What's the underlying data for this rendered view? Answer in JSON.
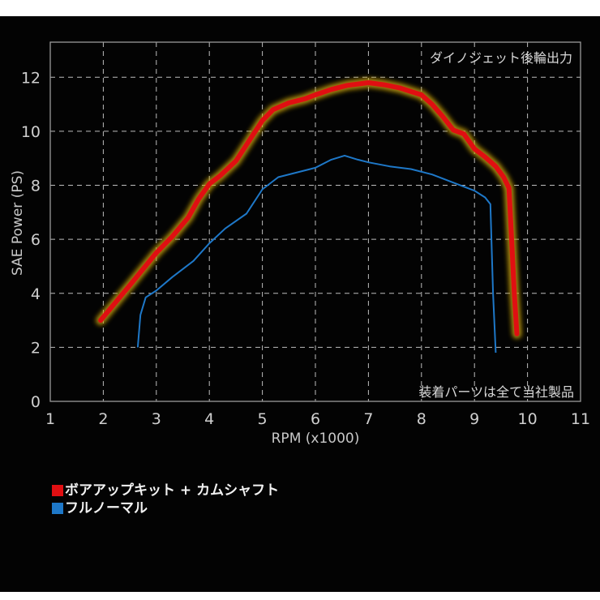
{
  "chart_data": {
    "type": "line",
    "title": "ダイノジェット後輪出力",
    "annotation": "装着パーツは全て当社製品",
    "xlabel": "RPM  (x1000)",
    "ylabel": "SAE Power  (PS)",
    "xlim": [
      1,
      11
    ],
    "ylim": [
      0,
      13.3
    ],
    "xticks": [
      "1",
      "2",
      "3",
      "4",
      "5",
      "6",
      "7",
      "8",
      "9",
      "10",
      "11"
    ],
    "yticks": [
      "0",
      "2",
      "4",
      "6",
      "8",
      "10",
      "12"
    ],
    "grid": true,
    "legend_position": "bottom-left",
    "series": [
      {
        "name": "ボアアップキット + カムシャフト",
        "color": "#e00f12",
        "x": [
          1.95,
          2.5,
          3.0,
          3.3,
          3.6,
          3.8,
          4.0,
          4.2,
          4.5,
          4.8,
          5.0,
          5.2,
          5.5,
          5.8,
          6.0,
          6.3,
          6.6,
          7.0,
          7.3,
          7.6,
          8.0,
          8.2,
          8.4,
          8.6,
          8.8,
          9.0,
          9.2,
          9.4,
          9.55,
          9.65,
          9.7,
          9.75,
          9.8
        ],
        "y": [
          3.0,
          4.3,
          5.5,
          6.1,
          6.8,
          7.5,
          8.05,
          8.35,
          8.9,
          9.8,
          10.4,
          10.8,
          11.05,
          11.2,
          11.35,
          11.55,
          11.7,
          11.8,
          11.72,
          11.6,
          11.35,
          11.0,
          10.55,
          10.05,
          9.9,
          9.35,
          9.05,
          8.7,
          8.3,
          7.9,
          6.0,
          4.0,
          2.5
        ]
      },
      {
        "name": "フルノーマル",
        "color": "#1e78c8",
        "x": [
          2.65,
          2.7,
          2.8,
          3.0,
          3.3,
          3.7,
          4.0,
          4.3,
          4.7,
          5.0,
          5.3,
          5.7,
          6.0,
          6.3,
          6.55,
          6.8,
          7.0,
          7.4,
          7.8,
          8.2,
          8.6,
          9.0,
          9.2,
          9.3,
          9.32,
          9.35,
          9.4
        ],
        "y": [
          2.0,
          3.2,
          3.85,
          4.1,
          4.6,
          5.2,
          5.85,
          6.4,
          6.95,
          7.85,
          8.3,
          8.5,
          8.65,
          8.95,
          9.1,
          8.95,
          8.85,
          8.7,
          8.6,
          8.4,
          8.1,
          7.8,
          7.55,
          7.3,
          6.0,
          4.0,
          1.8
        ]
      }
    ]
  },
  "chart": {
    "title": "ダイノジェット後輪出力",
    "annotation": "装着パーツは全て当社製品",
    "xlabel": "RPM  (x1000)",
    "ylabel": "SAE Power  (PS)"
  },
  "legend": {
    "items": [
      {
        "label": "ボアアップキット + カムシャフト",
        "color": "#e00f12"
      },
      {
        "label": "フルノーマル",
        "color": "#1e78c8"
      }
    ]
  }
}
